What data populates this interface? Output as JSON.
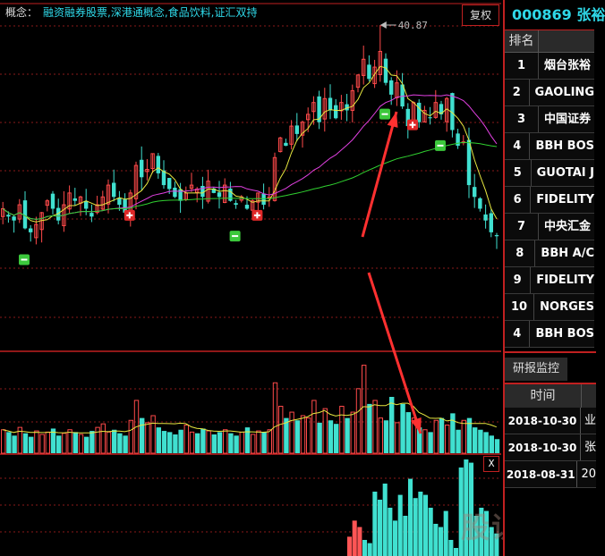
{
  "header": {
    "concept_label": "概念：",
    "concept_value": "融资融券股票,深港通概念,食品饮料,证汇双持",
    "fuquan_label": "复权",
    "peak_label": "40.87"
  },
  "colors": {
    "up": "#ff4a4a",
    "down": "#40e0d0",
    "ma_short": "#e8e840",
    "ma_mid": "#e040e0",
    "ma_long": "#30d030",
    "grid": "#8a1a1a",
    "arrow": "#ff3030"
  },
  "closes": [
    36.2,
    36.0,
    35.9,
    36.3,
    35.7,
    35.6,
    35.8,
    36.1,
    36.4,
    36.2,
    35.9,
    36.3,
    36.6,
    36.4,
    36.5,
    36.2,
    36.0,
    36.3,
    36.5,
    36.8,
    36.5,
    36.3,
    36.1,
    36.6,
    37.3,
    37.0,
    37.2,
    37.6,
    37.1,
    36.8,
    36.7,
    36.5,
    36.4,
    36.6,
    36.8,
    36.7,
    36.5,
    36.9,
    36.6,
    36.5,
    36.8,
    36.4,
    36.3,
    36.5,
    36.2,
    36.4,
    36.6,
    36.3,
    36.5,
    37.5,
    38.0,
    37.8,
    38.3,
    38.1,
    38.4,
    38.6,
    38.9,
    38.4,
    39.0,
    38.7,
    38.5,
    38.9,
    38.7,
    39.2,
    39.6,
    40.0,
    39.5,
    39.8,
    40.2,
    39.4,
    39.1,
    39.4,
    38.8,
    38.3,
    38.9,
    38.4,
    38.7,
    38.5,
    38.9,
    38.6,
    39.0,
    38.2,
    37.8,
    37.9,
    36.8,
    36.5,
    36.2,
    35.9,
    35.6,
    35.5
  ],
  "volumes": [
    20,
    18,
    15,
    22,
    17,
    14,
    19,
    16,
    18,
    21,
    15,
    17,
    20,
    18,
    16,
    14,
    19,
    22,
    25,
    18,
    20,
    17,
    15,
    28,
    45,
    30,
    26,
    32,
    22,
    19,
    18,
    16,
    20,
    24,
    18,
    17,
    21,
    19,
    16,
    18,
    20,
    17,
    15,
    18,
    22,
    16,
    19,
    18,
    20,
    60,
    40,
    30,
    35,
    28,
    32,
    30,
    45,
    26,
    38,
    28,
    25,
    40,
    30,
    35,
    55,
    75,
    42,
    45,
    30,
    28,
    48,
    26,
    42,
    35,
    30,
    22,
    20,
    18,
    28,
    30,
    24,
    34,
    20,
    28,
    30,
    22,
    20,
    18,
    15,
    12
  ],
  "indicator": [
    12,
    22,
    18,
    10,
    8,
    40,
    35,
    45,
    30,
    22,
    38,
    25,
    48,
    36,
    40,
    38,
    30,
    20,
    18,
    28,
    10,
    5,
    55,
    60,
    58,
    25,
    30,
    28,
    18,
    14
  ],
  "markers": [
    {
      "type": "minus",
      "index": 4
    },
    {
      "type": "plus",
      "index": 23
    },
    {
      "type": "minus",
      "index": 42
    },
    {
      "type": "plus",
      "index": 46
    },
    {
      "type": "minus",
      "index": 69
    },
    {
      "type": "plus",
      "index": 74
    },
    {
      "type": "minus",
      "index": 79
    }
  ],
  "close_button": "X",
  "right": {
    "code": "000869 张裕",
    "rank_header": "排名",
    "holders": [
      {
        "rank": "1",
        "name": "烟台张裕"
      },
      {
        "rank": "2",
        "name": "GAOLING"
      },
      {
        "rank": "3",
        "name": "中国证券"
      },
      {
        "rank": "4",
        "name": "BBH BOS"
      },
      {
        "rank": "5",
        "name": "GUOTAI J"
      },
      {
        "rank": "6",
        "name": "FIDELITY"
      },
      {
        "rank": "7",
        "name": "中央汇金"
      },
      {
        "rank": "8",
        "name": "BBH A/C"
      },
      {
        "rank": "9",
        "name": "FIDELITY"
      },
      {
        "rank": "10",
        "name": "NORGES"
      },
      {
        "rank": "4",
        "name": "BBH BOS"
      }
    ],
    "tab_label": "研报监控",
    "time_header": "时间",
    "reports": [
      {
        "date": "2018-10-30",
        "title": "业"
      },
      {
        "date": "2018-10-30",
        "title": "张"
      },
      {
        "date": "2018-08-31",
        "title": "20"
      }
    ]
  },
  "watermark": "股识吧"
}
